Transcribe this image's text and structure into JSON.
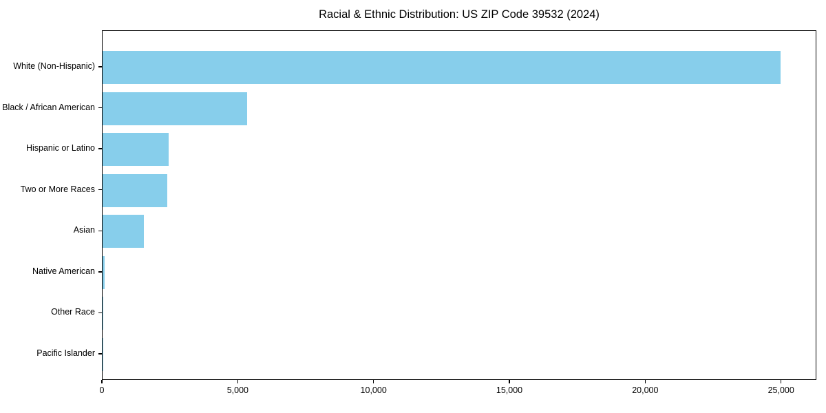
{
  "title": "Racial & Ethnic Distribution: US ZIP Code 39532 (2024)",
  "chart_data": {
    "type": "bar",
    "orientation": "horizontal",
    "title": "Racial & Ethnic Distribution: US ZIP Code 39532 (2024)",
    "xlabel": "",
    "ylabel": "",
    "categories": [
      "White (Non-Hispanic)",
      "Black / African American",
      "Hispanic or Latino",
      "Two or More Races",
      "Asian",
      "Native American",
      "Other Race",
      "Pacific Islander"
    ],
    "values": [
      25000,
      5340,
      2440,
      2390,
      1520,
      75,
      10,
      5
    ],
    "xlim": [
      0,
      26300
    ],
    "xticks": [
      0,
      5000,
      10000,
      15000,
      20000,
      25000
    ],
    "xtick_labels": [
      "0",
      "5,000",
      "10,000",
      "15,000",
      "20,000",
      "25,000"
    ],
    "bar_color": "#87CEEB",
    "axis_color": "#000000",
    "background_color": "#FFFFFF",
    "grid": false,
    "legend": null
  }
}
